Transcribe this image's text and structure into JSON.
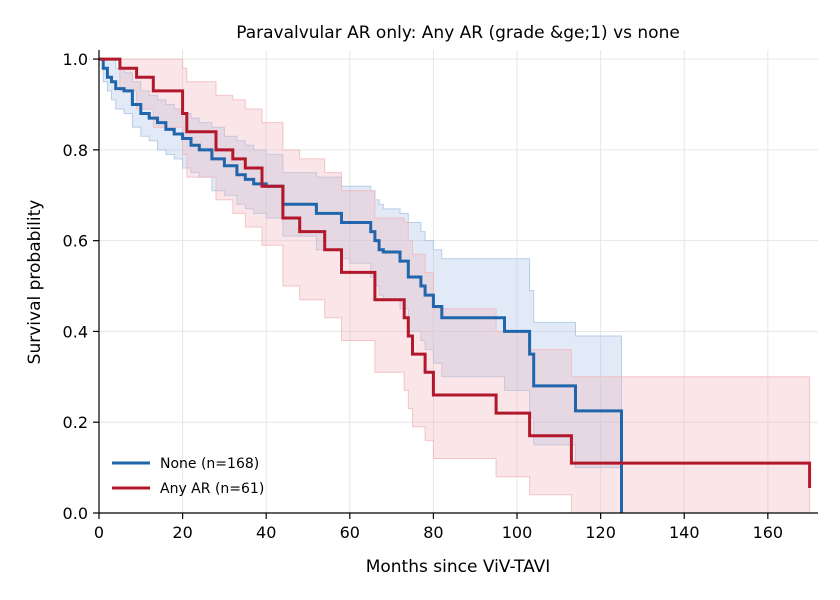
{
  "chart_data": {
    "type": "line",
    "title": "Paravalvular AR only: Any AR (grade &ge;1) vs none",
    "xlabel": "Months since ViV-TAVI",
    "ylabel": "Survival probability",
    "xlim": [
      0,
      172
    ],
    "ylim": [
      0,
      1.02
    ],
    "xticks": [
      0,
      20,
      40,
      60,
      80,
      100,
      120,
      140,
      160
    ],
    "yticks": [
      0.0,
      0.2,
      0.4,
      0.6,
      0.8,
      1.0
    ],
    "xtick_labels": [
      "0",
      "20",
      "40",
      "60",
      "80",
      "100",
      "120",
      "140",
      "160"
    ],
    "ytick_labels": [
      "0.0",
      "0.2",
      "0.4",
      "0.6",
      "0.8",
      "1.0"
    ],
    "grid": true,
    "legend_position": "lower-left",
    "series": [
      {
        "name": "None (n=168)",
        "color": "#2166ac",
        "band_color": "#a9c4e4",
        "x": [
          0,
          1,
          2,
          3,
          4,
          6,
          8,
          10,
          12,
          14,
          16,
          18,
          20,
          22,
          24,
          27,
          30,
          33,
          35,
          37,
          40,
          44,
          45,
          52,
          58,
          60,
          65,
          66,
          67,
          68,
          72,
          74,
          77,
          78,
          80,
          82,
          92,
          97,
          103,
          104,
          114,
          125
        ],
        "y": [
          1.0,
          0.98,
          0.96,
          0.95,
          0.935,
          0.93,
          0.9,
          0.88,
          0.87,
          0.86,
          0.845,
          0.835,
          0.825,
          0.81,
          0.8,
          0.78,
          0.765,
          0.745,
          0.735,
          0.725,
          0.72,
          0.68,
          0.68,
          0.66,
          0.64,
          0.64,
          0.62,
          0.6,
          0.58,
          0.575,
          0.555,
          0.52,
          0.5,
          0.48,
          0.455,
          0.43,
          0.43,
          0.4,
          0.35,
          0.28,
          0.225,
          0.0
        ],
        "ci_lower": [
          1.0,
          0.95,
          0.93,
          0.91,
          0.89,
          0.88,
          0.85,
          0.83,
          0.82,
          0.8,
          0.79,
          0.78,
          0.76,
          0.75,
          0.74,
          0.71,
          0.7,
          0.68,
          0.67,
          0.66,
          0.65,
          0.61,
          0.61,
          0.58,
          0.56,
          0.55,
          0.52,
          0.5,
          0.48,
          0.47,
          0.45,
          0.4,
          0.38,
          0.36,
          0.33,
          0.3,
          0.3,
          0.27,
          0.21,
          0.15,
          0.1,
          0.0
        ],
        "ci_upper": [
          1.0,
          1.0,
          1.0,
          1.0,
          0.98,
          0.97,
          0.95,
          0.93,
          0.92,
          0.91,
          0.9,
          0.89,
          0.88,
          0.87,
          0.86,
          0.85,
          0.83,
          0.82,
          0.81,
          0.8,
          0.79,
          0.75,
          0.75,
          0.74,
          0.72,
          0.72,
          0.71,
          0.69,
          0.68,
          0.67,
          0.66,
          0.64,
          0.62,
          0.6,
          0.58,
          0.56,
          0.56,
          0.56,
          0.49,
          0.42,
          0.39,
          0.39
        ]
      },
      {
        "name": "Any AR (n=61)",
        "color": "#b2182b",
        "band_color": "#f1b6bd",
        "x": [
          0,
          5,
          9,
          13,
          20,
          21,
          28,
          32,
          35,
          39,
          44,
          48,
          54,
          58,
          66,
          73,
          74,
          75,
          78,
          80,
          95,
          103,
          113,
          170
        ],
        "y": [
          1.0,
          0.98,
          0.96,
          0.93,
          0.88,
          0.84,
          0.8,
          0.78,
          0.76,
          0.72,
          0.65,
          0.62,
          0.58,
          0.53,
          0.47,
          0.43,
          0.39,
          0.35,
          0.31,
          0.26,
          0.22,
          0.17,
          0.11,
          0.055
        ],
        "ci_lower": [
          1.0,
          0.93,
          0.89,
          0.85,
          0.79,
          0.74,
          0.69,
          0.66,
          0.63,
          0.59,
          0.5,
          0.47,
          0.43,
          0.38,
          0.31,
          0.27,
          0.23,
          0.19,
          0.16,
          0.12,
          0.08,
          0.04,
          0.0,
          0.0
        ],
        "ci_upper": [
          1.0,
          1.0,
          1.0,
          1.0,
          0.98,
          0.95,
          0.92,
          0.91,
          0.89,
          0.86,
          0.8,
          0.78,
          0.75,
          0.71,
          0.65,
          0.64,
          0.6,
          0.57,
          0.53,
          0.45,
          0.4,
          0.36,
          0.3,
          0.16
        ]
      }
    ]
  }
}
